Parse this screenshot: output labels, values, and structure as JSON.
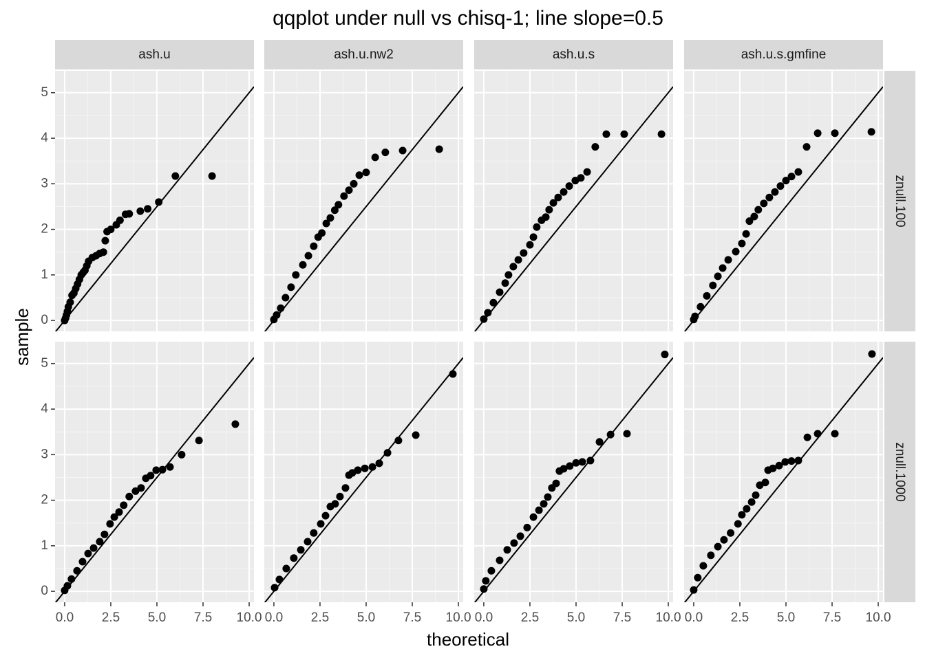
{
  "chart_data": {
    "type": "scatter",
    "title": "qqplot under null vs chisq-1; line slope=0.5",
    "x_label": "theoretical",
    "y_label": "sample",
    "xlim": [
      -0.52,
      10.26
    ],
    "ylim": [
      -0.24,
      5.48
    ],
    "xticks": [
      {
        "value": 0,
        "label": "0.0"
      },
      {
        "value": 2.5,
        "label": "2.5"
      },
      {
        "value": 5,
        "label": "5.0"
      },
      {
        "value": 7.5,
        "label": "7.5"
      },
      {
        "value": 10,
        "label": "10.0"
      }
    ],
    "yticks": [
      0,
      1,
      2,
      3,
      4,
      5
    ],
    "xminor": [
      1.25,
      3.75,
      6.25,
      8.75
    ],
    "yminor": [
      0.5,
      1.5,
      2.5,
      3.5,
      4.5
    ],
    "grid": true,
    "color": "#000000",
    "reference_line": {
      "slope": 0.5,
      "intercept": 0
    },
    "columns": [
      "ash.u",
      "ash.u.nw2",
      "ash.u.s",
      "ash.u.s.gmfine"
    ],
    "rows": [
      {
        "name": "znull.100",
        "panels": [
          {
            "x": [
              0,
              0.05,
              0.1,
              0.15,
              0.2,
              0.3,
              0.4,
              0.5,
              0.6,
              0.7,
              0.8,
              0.9,
              1.0,
              1.1,
              1.2,
              1.3,
              1.5,
              1.7,
              1.9,
              2.1,
              2.2,
              2.3,
              2.5,
              2.8,
              3.0,
              3.3,
              3.5,
              4.1,
              4.5,
              5.1,
              6.0,
              7.99
            ],
            "y": [
              0,
              0.05,
              0.12,
              0.2,
              0.3,
              0.4,
              0.55,
              0.6,
              0.7,
              0.8,
              0.9,
              1.0,
              1.05,
              1.1,
              1.2,
              1.3,
              1.38,
              1.42,
              1.47,
              1.5,
              1.75,
              1.95,
              2.0,
              2.1,
              2.2,
              2.33,
              2.34,
              2.4,
              2.45,
              2.6,
              3.17,
              3.17
            ]
          },
          {
            "x": [
              0,
              0.15,
              0.37,
              0.63,
              0.93,
              1.19,
              1.57,
              1.87,
              2.16,
              2.4,
              2.6,
              2.84,
              3.06,
              3.3,
              3.5,
              3.8,
              4.07,
              4.33,
              4.63,
              5.0,
              5.49,
              6.04,
              6.98,
              8.96
            ],
            "y": [
              0.02,
              0.12,
              0.27,
              0.5,
              0.73,
              1.0,
              1.22,
              1.42,
              1.63,
              1.83,
              1.92,
              2.13,
              2.25,
              2.42,
              2.54,
              2.73,
              2.86,
              3.0,
              3.19,
              3.25,
              3.58,
              3.69,
              3.73,
              3.76
            ]
          },
          {
            "x": [
              0,
              0.22,
              0.52,
              0.86,
              1.16,
              1.34,
              1.6,
              1.87,
              2.16,
              2.5,
              2.69,
              2.87,
              3.13,
              3.36,
              3.54,
              3.77,
              4.03,
              4.33,
              4.63,
              4.96,
              5.26,
              5.6,
              6.04,
              6.64,
              7.61,
              9.63
            ],
            "y": [
              0.03,
              0.17,
              0.39,
              0.62,
              0.82,
              1.0,
              1.18,
              1.33,
              1.48,
              1.66,
              1.83,
              2.05,
              2.2,
              2.27,
              2.43,
              2.58,
              2.7,
              2.82,
              2.95,
              3.07,
              3.13,
              3.26,
              3.81,
              4.09,
              4.09,
              4.09
            ]
          },
          {
            "x": [
              0,
              0.07,
              0.37,
              0.71,
              1.04,
              1.31,
              1.57,
              1.87,
              2.28,
              2.61,
              2.84,
              3.02,
              3.28,
              3.5,
              3.8,
              4.1,
              4.4,
              4.7,
              5.0,
              5.3,
              5.67,
              6.12,
              6.72,
              7.65,
              9.63
            ],
            "y": [
              0.02,
              0.09,
              0.3,
              0.54,
              0.77,
              0.97,
              1.15,
              1.33,
              1.51,
              1.69,
              1.9,
              2.18,
              2.28,
              2.43,
              2.57,
              2.7,
              2.82,
              2.95,
              3.07,
              3.16,
              3.26,
              3.81,
              4.11,
              4.11,
              4.14
            ]
          }
        ]
      },
      {
        "name": "znull.1000",
        "panels": [
          {
            "x": [
              0,
              0.15,
              0.37,
              0.67,
              0.97,
              1.27,
              1.57,
              1.9,
              2.16,
              2.46,
              2.69,
              2.95,
              3.2,
              3.5,
              3.84,
              4.14,
              4.4,
              4.66,
              4.96,
              5.3,
              5.71,
              6.34,
              7.28,
              9.25
            ],
            "y": [
              0.02,
              0.12,
              0.27,
              0.45,
              0.65,
              0.83,
              0.95,
              1.09,
              1.25,
              1.48,
              1.63,
              1.74,
              1.89,
              2.08,
              2.2,
              2.27,
              2.48,
              2.54,
              2.66,
              2.67,
              2.73,
              3.0,
              3.31,
              3.67
            ]
          },
          {
            "x": [
              0.04,
              0.3,
              0.67,
              1.08,
              1.46,
              1.83,
              2.16,
              2.54,
              2.8,
              3.06,
              3.32,
              3.58,
              3.88,
              4.07,
              4.25,
              4.55,
              4.93,
              5.34,
              5.71,
              6.16,
              6.75,
              7.69,
              9.7
            ],
            "y": [
              0.08,
              0.26,
              0.5,
              0.73,
              0.91,
              1.09,
              1.28,
              1.48,
              1.66,
              1.86,
              1.92,
              2.08,
              2.27,
              2.55,
              2.6,
              2.66,
              2.7,
              2.73,
              2.81,
              3.04,
              3.31,
              3.43,
              4.77
            ]
          },
          {
            "x": [
              0,
              0.11,
              0.41,
              0.86,
              1.27,
              1.64,
              1.98,
              2.35,
              2.69,
              2.99,
              3.25,
              3.47,
              3.69,
              3.92,
              4.1,
              4.33,
              4.66,
              5.0,
              5.34,
              5.78,
              6.27,
              6.87,
              7.76,
              9.81
            ],
            "y": [
              0.05,
              0.23,
              0.45,
              0.68,
              0.91,
              1.06,
              1.21,
              1.4,
              1.63,
              1.78,
              1.92,
              2.07,
              2.27,
              2.37,
              2.64,
              2.69,
              2.75,
              2.82,
              2.84,
              2.87,
              3.28,
              3.44,
              3.46,
              5.2
            ]
          },
          {
            "x": [
              0,
              0.22,
              0.52,
              0.93,
              1.31,
              1.64,
              2.0,
              2.4,
              2.61,
              2.87,
              3.14,
              3.36,
              3.58,
              3.88,
              4.03,
              4.29,
              4.63,
              4.96,
              5.3,
              5.67,
              6.16,
              6.72,
              7.65,
              9.66
            ],
            "y": [
              0.03,
              0.3,
              0.56,
              0.79,
              0.98,
              1.13,
              1.28,
              1.48,
              1.68,
              1.81,
              1.96,
              2.11,
              2.33,
              2.39,
              2.66,
              2.7,
              2.76,
              2.84,
              2.86,
              2.87,
              3.38,
              3.46,
              3.46,
              5.21
            ]
          }
        ]
      }
    ]
  }
}
